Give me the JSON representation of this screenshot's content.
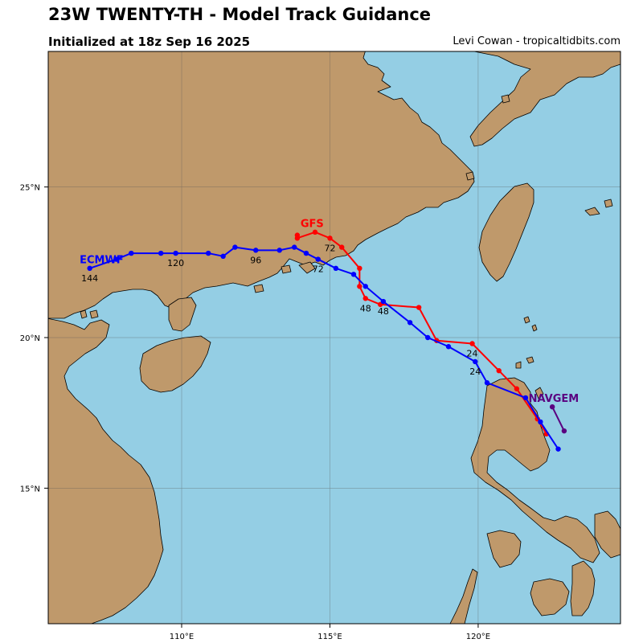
{
  "header": {
    "title": "23W TWENTY-TH - Model Track Guidance",
    "subtitle": "Initialized at 18z Sep 16 2025",
    "credit": "Levi Cowan - tropicaltidbits.com"
  },
  "colors": {
    "ocean": "#94cee4",
    "land": "#bf996b",
    "gfs": "#ff0000",
    "ecmwf": "#0000ff",
    "navgem": "#5a0080"
  },
  "map": {
    "x_ticks": [
      {
        "value": 110,
        "label": "110°E"
      },
      {
        "value": 115,
        "label": "115°E"
      },
      {
        "value": 120,
        "label": "120°E"
      }
    ],
    "y_ticks": [
      {
        "value": 25,
        "label": "25°N"
      },
      {
        "value": 20,
        "label": "20°N"
      },
      {
        "value": 15,
        "label": "15°N"
      }
    ],
    "lon_range": [
      105.5,
      124.8
    ],
    "lat_range": [
      10.5,
      29.5
    ]
  },
  "chart_data": {
    "type": "scatter",
    "series": [
      {
        "name": "GFS",
        "color": "#ff0000",
        "points": [
          [
            122.3,
            16.8
          ],
          [
            122.0,
            17.3
          ],
          [
            121.3,
            18.3
          ],
          [
            120.7,
            18.9
          ],
          [
            119.8,
            19.8
          ],
          [
            118.6,
            19.9
          ],
          [
            118.0,
            21.0
          ],
          [
            116.7,
            21.1
          ],
          [
            116.2,
            21.3
          ],
          [
            116.0,
            21.7
          ],
          [
            116.0,
            22.3
          ],
          [
            115.4,
            23.0
          ],
          [
            115.0,
            23.3
          ],
          [
            114.5,
            23.5
          ],
          [
            113.9,
            23.3
          ],
          [
            113.9,
            23.4
          ]
        ],
        "hour_labels": [
          {
            "text": "24",
            "lon": 119.8,
            "lat": 19.8
          },
          {
            "text": "48",
            "lon": 116.2,
            "lat": 21.3
          },
          {
            "text": "72",
            "lon": 115.0,
            "lat": 23.3
          }
        ]
      },
      {
        "name": "ECMWF",
        "color": "#0000ff",
        "points": [
          [
            122.7,
            16.3
          ],
          [
            122.1,
            17.2
          ],
          [
            121.6,
            18.0
          ],
          [
            120.3,
            18.5
          ],
          [
            119.9,
            19.2
          ],
          [
            119.0,
            19.7
          ],
          [
            118.3,
            20.0
          ],
          [
            117.7,
            20.5
          ],
          [
            116.8,
            21.2
          ],
          [
            116.2,
            21.7
          ],
          [
            115.8,
            22.1
          ],
          [
            115.2,
            22.3
          ],
          [
            114.6,
            22.6
          ],
          [
            114.2,
            22.8
          ],
          [
            113.8,
            23.0
          ],
          [
            113.3,
            22.9
          ],
          [
            112.5,
            22.9
          ],
          [
            111.8,
            23.0
          ],
          [
            111.4,
            22.7
          ],
          [
            110.9,
            22.8
          ],
          [
            109.8,
            22.8
          ],
          [
            109.3,
            22.8
          ],
          [
            108.3,
            22.8
          ],
          [
            107.8,
            22.6
          ],
          [
            106.9,
            22.3
          ]
        ],
        "hour_labels": [
          {
            "text": "24",
            "lon": 119.9,
            "lat": 19.2
          },
          {
            "text": "48",
            "lon": 116.8,
            "lat": 21.2
          },
          {
            "text": "72",
            "lon": 114.6,
            "lat": 22.6
          },
          {
            "text": "96",
            "lon": 112.5,
            "lat": 22.9
          },
          {
            "text": "120",
            "lon": 109.8,
            "lat": 22.8
          },
          {
            "text": "144",
            "lon": 106.9,
            "lat": 22.3
          }
        ]
      },
      {
        "name": "NAVGEM",
        "color": "#5a0080",
        "points": [
          [
            122.9,
            16.9
          ],
          [
            122.5,
            17.7
          ]
        ],
        "hour_labels": []
      }
    ]
  }
}
